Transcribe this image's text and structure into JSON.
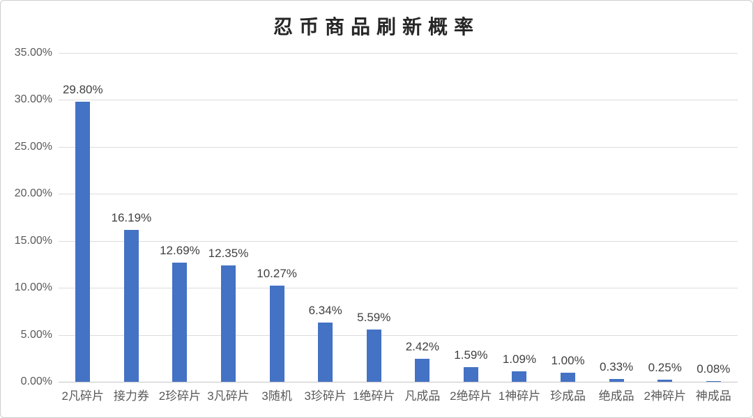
{
  "chart_data": {
    "type": "bar",
    "title": "忍币商品刷新概率",
    "categories": [
      "2凡碎片",
      "接力券",
      "2珍碎片",
      "3凡碎片",
      "3随机",
      "3珍碎片",
      "1绝碎片",
      "凡成品",
      "2绝碎片",
      "1神碎片",
      "珍成品",
      "绝成品",
      "2神碎片",
      "神成品"
    ],
    "values": [
      29.8,
      16.19,
      12.69,
      12.35,
      10.27,
      6.34,
      5.59,
      2.42,
      1.59,
      1.09,
      1.0,
      0.33,
      0.25,
      0.08
    ],
    "value_labels": [
      "29.80%",
      "16.19%",
      "12.69%",
      "12.35%",
      "10.27%",
      "6.34%",
      "5.59%",
      "2.42%",
      "1.59%",
      "1.09%",
      "1.00%",
      "0.33%",
      "0.25%",
      "0.08%"
    ],
    "xlabel": "",
    "ylabel": "",
    "ylim": [
      0,
      35
    ],
    "y_tick_interval": 5,
    "y_tick_labels": [
      "0.00%",
      "5.00%",
      "10.00%",
      "15.00%",
      "20.00%",
      "25.00%",
      "30.00%",
      "35.00%"
    ],
    "grid": "horizontal",
    "legend": "none",
    "colors": {
      "bar": "#4472c4",
      "gridline": "#dcdcdc",
      "axis_line": "#c6c6c6",
      "axis_text": "#595959",
      "data_label_text": "#404040",
      "title_text": "#262626",
      "background": "#ffffff",
      "border": "#cfcdcd"
    }
  }
}
